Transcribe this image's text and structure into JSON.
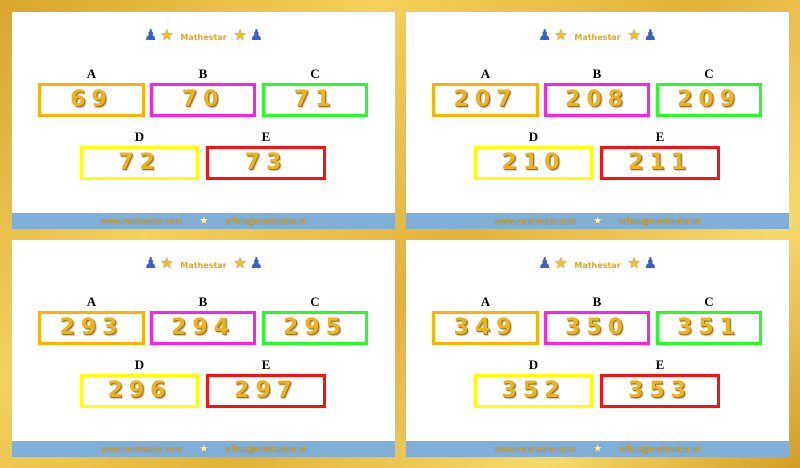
{
  "brand": {
    "logo_text": "Mathestar",
    "website": "www.mathestar.com",
    "email": "office@mathestar.at"
  },
  "colors": {
    "A": "#ffb000",
    "B": "#ff1fe6",
    "C": "#22ff22",
    "D": "#ffff00",
    "E": "#ff1010",
    "footer": "#80afd8"
  },
  "labels": [
    "A",
    "B",
    "C",
    "D",
    "E"
  ],
  "panels": [
    {
      "values": [
        "69",
        "70",
        "71",
        "72",
        "73"
      ]
    },
    {
      "values": [
        "207",
        "208",
        "209",
        "210",
        "211"
      ]
    },
    {
      "values": [
        "293",
        "294",
        "295",
        "296",
        "297"
      ]
    },
    {
      "values": [
        "349",
        "350",
        "351",
        "352",
        "353"
      ]
    }
  ]
}
